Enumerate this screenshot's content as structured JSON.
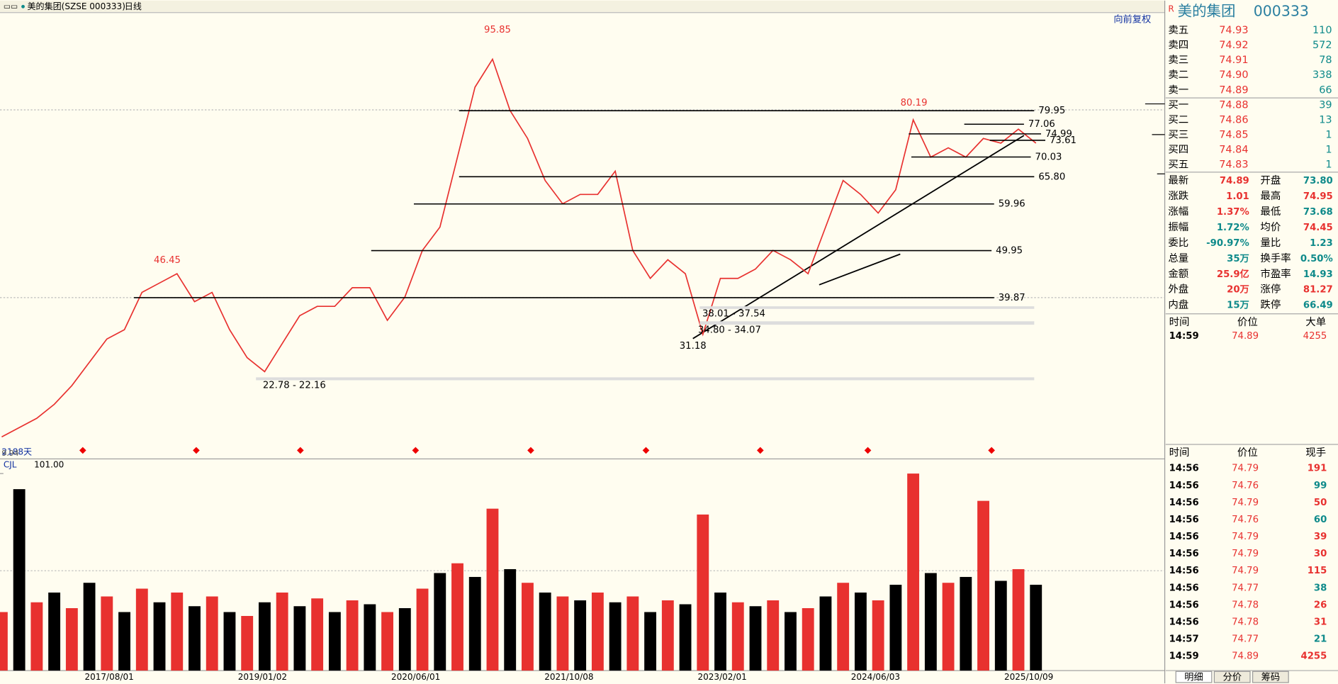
{
  "header": {
    "name": "美的集团(SZSE 000333)",
    "period": "日线",
    "adjust": "向前复权",
    "days": "2188天",
    "low_axis": "9.94"
  },
  "chart_data": [
    {
      "type": "line",
      "color": "#e8312f",
      "values": [
        10,
        12,
        14,
        17,
        21,
        26,
        31,
        33,
        41,
        43,
        45,
        39,
        41,
        33,
        27,
        24,
        30,
        36,
        38,
        38,
        42,
        42,
        35,
        40,
        50,
        55,
        70,
        85,
        91,
        80,
        74,
        65,
        60,
        62,
        62,
        67,
        50,
        44,
        48,
        45,
        32,
        44,
        44,
        46,
        50,
        48,
        45,
        55,
        65,
        62,
        58,
        63,
        78,
        70,
        72,
        70,
        74,
        73,
        76,
        73
      ],
      "ylim": [
        5.65,
        101
      ],
      "levels": [
        79.95,
        77.06,
        74.99,
        73.61,
        70.03,
        {
          "value": 65.8,
          "label": "65.80"
        },
        59.96,
        49.95,
        39.87
      ],
      "zones": [
        {
          "values": [
            22.78,
            22.16
          ],
          "label": "22.78 - 22.16"
        },
        {
          "values": [
            38.01,
            37.54
          ],
          "label": "38.01 - 37.54"
        },
        {
          "values": [
            34.8,
            34.07
          ],
          "label": "34.80 - 34.07"
        }
      ],
      "peaks": [
        {
          "value": 95.85,
          "color": "#e8312f"
        },
        {
          "value": 46.45,
          "color": "#e8312f"
        },
        {
          "value": 80.19,
          "color": "#e8312f"
        },
        {
          "value": 31.18,
          "color": "#000000"
        }
      ],
      "date_labels": [
        "2017/08/01",
        "2019/01/02",
        "2020/06/01",
        "2021/10/08",
        "2023/02/01",
        "2024/06/03",
        "2025/10/09"
      ]
    },
    {
      "type": "bar",
      "title": "CJL",
      "colors": [
        "#e8312f",
        "#000000"
      ],
      "values": [
        30,
        93,
        35,
        40,
        32,
        45,
        38,
        30,
        42,
        35,
        40,
        33,
        38,
        30,
        28,
        35,
        40,
        33,
        37,
        30,
        36,
        34,
        30,
        32,
        42,
        50,
        55,
        48,
        83,
        52,
        45,
        40,
        38,
        36,
        40,
        35,
        38,
        30,
        36,
        34,
        80,
        40,
        35,
        33,
        36,
        30,
        32,
        38,
        45,
        40,
        36,
        44,
        101,
        50,
        45,
        48,
        87,
        46,
        52,
        44
      ],
      "ylim": [
        0,
        105
      ],
      "yticks": [
        {
          "value": 101,
          "label": "101.00"
        }
      ]
    }
  ],
  "quote": {
    "flag": "R",
    "title": "美的集团",
    "code": "000333",
    "book": [
      [
        "卖五",
        "74.93",
        "110"
      ],
      [
        "卖四",
        "74.92",
        "572"
      ],
      [
        "卖三",
        "74.91",
        "78"
      ],
      [
        "卖二",
        "74.90",
        "338"
      ],
      [
        "卖一",
        "74.89",
        "66"
      ],
      [
        "买一",
        "74.88",
        "39"
      ],
      [
        "买二",
        "74.86",
        "13"
      ],
      [
        "买三",
        "74.85",
        "1"
      ],
      [
        "买四",
        "74.84",
        "1"
      ],
      [
        "买五",
        "74.83",
        "1"
      ]
    ],
    "stats": [
      [
        "最新",
        "74.89",
        "开盘",
        "73.80"
      ],
      [
        "涨跌",
        "1.01",
        "最高",
        "74.95"
      ],
      [
        "涨幅",
        "1.37%",
        "最低",
        "73.68"
      ],
      [
        "振幅",
        "1.72%",
        "均价",
        "74.45"
      ],
      [
        "委比",
        "-90.97%",
        "量比",
        "1.23"
      ],
      [
        "总量",
        "35万",
        "换手率",
        "0.50%"
      ],
      [
        "金额",
        "25.9亿",
        "市盈率",
        "14.93"
      ],
      [
        "外盘",
        "20万",
        "涨停",
        "81.27"
      ],
      [
        "内盘",
        "15万",
        "跌停",
        "66.49"
      ]
    ],
    "big_header": [
      "时间",
      "价位",
      "大单"
    ],
    "big_rows": [
      [
        "14:59",
        "74.89",
        "4255"
      ]
    ],
    "tick_header": [
      "时间",
      "价位",
      "现手"
    ],
    "ticks": [
      [
        "14:56",
        "74.79",
        "191"
      ],
      [
        "14:56",
        "74.76",
        "99"
      ],
      [
        "14:56",
        "74.79",
        "50"
      ],
      [
        "14:56",
        "74.76",
        "60"
      ],
      [
        "14:56",
        "74.79",
        "39"
      ],
      [
        "14:56",
        "74.79",
        "30"
      ],
      [
        "14:56",
        "74.79",
        "115"
      ],
      [
        "14:56",
        "74.77",
        "38"
      ],
      [
        "14:56",
        "74.78",
        "26"
      ],
      [
        "14:56",
        "74.78",
        "31"
      ],
      [
        "14:57",
        "74.77",
        "21"
      ],
      [
        "14:59",
        "74.89",
        "4255"
      ]
    ],
    "tabs": [
      "明细",
      "分价",
      "筹码"
    ]
  }
}
